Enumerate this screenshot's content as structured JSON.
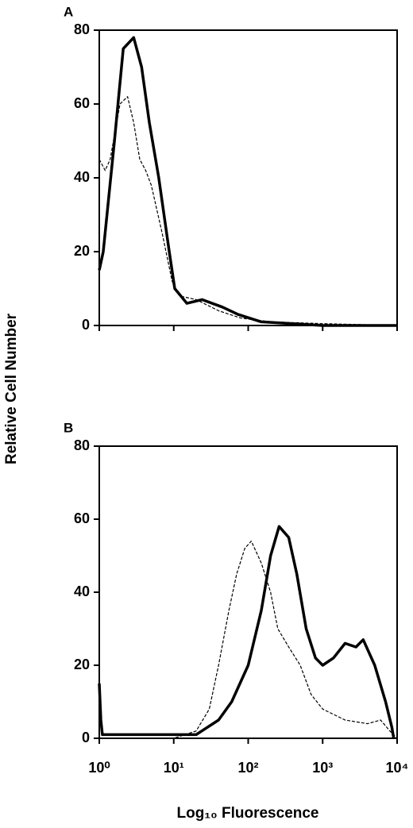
{
  "chart_data": [
    {
      "type": "line",
      "label": "A",
      "ylabel": "Relative Cell Number",
      "xscale": "log",
      "xlim": [
        1,
        10000
      ],
      "xticks": [
        1,
        10,
        100,
        1000,
        10000
      ],
      "ylim": [
        0,
        80
      ],
      "yticks": [
        0,
        20,
        40,
        60,
        80
      ],
      "series": [
        {
          "color": "#000000",
          "style": "solid",
          "x": [
            1,
            1.13,
            1.6,
            2.1,
            2.9,
            3.7,
            4.7,
            6.3,
            8.7,
            10.3,
            15,
            24,
            45,
            73,
            150,
            400,
            1000,
            10000
          ],
          "values": [
            15,
            20,
            50,
            75,
            78,
            70,
            55,
            40,
            20,
            10,
            6,
            7,
            5,
            3,
            1,
            0.5,
            0,
            0
          ]
        },
        {
          "color": "#000000",
          "style": "dashed",
          "x": [
            1,
            1.2,
            1.4,
            1.9,
            2.4,
            2.9,
            3.5,
            4.2,
            5,
            7,
            9.5,
            12,
            20,
            40,
            80,
            200,
            1000,
            10000
          ],
          "values": [
            45,
            42,
            45,
            60,
            62,
            55,
            45,
            42,
            38,
            25,
            12,
            8,
            7,
            4,
            2,
            1,
            0.5,
            0
          ]
        }
      ]
    },
    {
      "type": "line",
      "label": "B",
      "xlabel": "Log₁₀ Fluorescence",
      "xscale": "log",
      "xlim": [
        1,
        10000
      ],
      "xticks": [
        {
          "value": 1,
          "label": "10⁰"
        },
        {
          "value": 10,
          "label": "10¹"
        },
        {
          "value": 100,
          "label": "10²"
        },
        {
          "value": 1000,
          "label": "10³"
        },
        {
          "value": 10000,
          "label": "10⁴"
        }
      ],
      "ylim": [
        0,
        80
      ],
      "yticks": [
        0,
        20,
        40,
        60,
        80
      ],
      "series": [
        {
          "color": "#000000",
          "style": "solid",
          "x": [
            1,
            1.05,
            1.1,
            5,
            20,
            40,
            60,
            100,
            150,
            200,
            260,
            350,
            450,
            600,
            800,
            1000,
            1400,
            2000,
            2800,
            3500,
            5000,
            7000,
            8500,
            9000
          ],
          "values": [
            15,
            5,
            1,
            1,
            1,
            5,
            10,
            20,
            35,
            50,
            58,
            55,
            45,
            30,
            22,
            20,
            22,
            26,
            25,
            27,
            20,
            10,
            3,
            0
          ]
        },
        {
          "color": "#000000",
          "style": "dashed",
          "x": [
            1,
            10,
            20,
            30,
            40,
            55,
            70,
            90,
            110,
            150,
            200,
            250,
            350,
            500,
            700,
            1000,
            2000,
            4000,
            6000,
            8000,
            10000
          ],
          "values": [
            0,
            0,
            2,
            8,
            20,
            35,
            45,
            52,
            54,
            48,
            40,
            30,
            25,
            20,
            12,
            8,
            5,
            4,
            5,
            2,
            0
          ]
        }
      ]
    }
  ]
}
